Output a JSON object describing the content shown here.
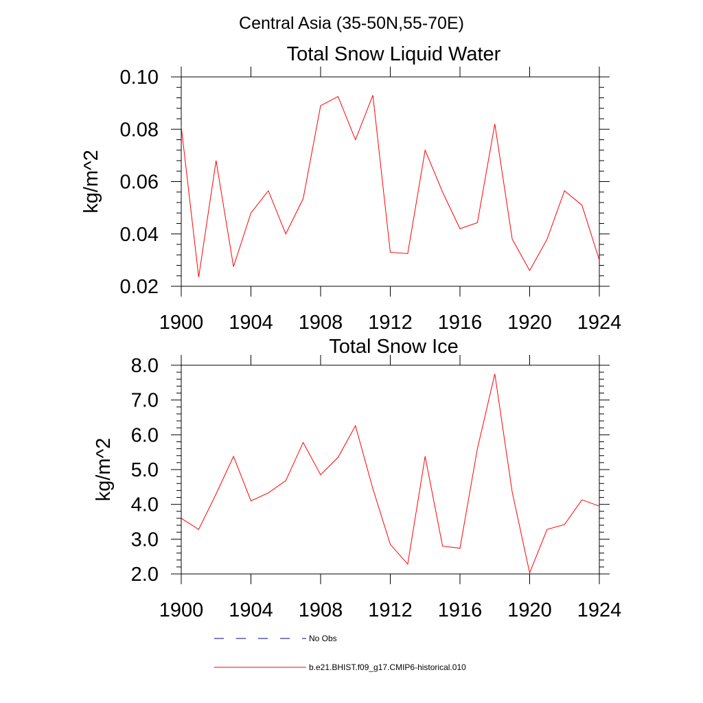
{
  "figure": {
    "suptitle": "Central Asia (35-50N,55-70E)"
  },
  "legend": {
    "entries": [
      {
        "label": "No Obs",
        "style": "dashed",
        "color": "#000080"
      },
      {
        "label": "b.e21.BHIST.f09_g17.CMIP6-historical.010",
        "style": "solid",
        "color": "#ff0000"
      }
    ]
  },
  "chart_data": [
    {
      "type": "line",
      "title": "Total Snow Liquid Water",
      "xlabel": "",
      "ylabel": "kg/m^2",
      "xlim": [
        1900,
        1924
      ],
      "ylim": [
        0.02,
        0.1
      ],
      "xticks": [
        1900,
        1904,
        1908,
        1912,
        1916,
        1920,
        1924
      ],
      "xtick_labels": [
        "1900",
        "1904",
        "1908",
        "1912",
        "1916",
        "1920",
        "1924"
      ],
      "yticks": [
        0.02,
        0.04,
        0.06,
        0.08,
        0.1
      ],
      "ytick_labels": [
        "0.02",
        "0.04",
        "0.06",
        "0.08",
        "0.10"
      ],
      "grid": false,
      "series": [
        {
          "color": "#ff0000",
          "x": [
            1900,
            1901,
            1902,
            1903,
            1904,
            1905,
            1906,
            1907,
            1908,
            1909,
            1910,
            1911,
            1912,
            1913,
            1914,
            1915,
            1916,
            1917,
            1918,
            1919,
            1920,
            1921,
            1922,
            1923,
            1924
          ],
          "y": [
            0.081,
            0.0235,
            0.068,
            0.0275,
            0.048,
            0.0565,
            0.04,
            0.0535,
            0.089,
            0.0925,
            0.076,
            0.093,
            0.033,
            0.0325,
            0.072,
            0.056,
            0.042,
            0.0443,
            0.082,
            0.038,
            0.026,
            0.038,
            0.0565,
            0.051,
            0.03
          ]
        }
      ]
    },
    {
      "type": "line",
      "title": "Total Snow Ice",
      "xlabel": "",
      "ylabel": "kg/m^2",
      "xlim": [
        1900,
        1924
      ],
      "ylim": [
        2.0,
        8.0
      ],
      "xticks": [
        1900,
        1904,
        1908,
        1912,
        1916,
        1920,
        1924
      ],
      "xtick_labels": [
        "1900",
        "1904",
        "1908",
        "1912",
        "1916",
        "1920",
        "1924"
      ],
      "yticks": [
        2.0,
        3.0,
        4.0,
        5.0,
        6.0,
        7.0,
        8.0
      ],
      "ytick_labels": [
        "2.0",
        "3.0",
        "4.0",
        "5.0",
        "6.0",
        "7.0",
        "8.0"
      ],
      "grid": false,
      "series": [
        {
          "color": "#ff0000",
          "x": [
            1900,
            1901,
            1902,
            1903,
            1904,
            1905,
            1906,
            1907,
            1908,
            1909,
            1910,
            1911,
            1912,
            1913,
            1914,
            1915,
            1916,
            1917,
            1918,
            1919,
            1920,
            1921,
            1922,
            1923,
            1924
          ],
          "y": [
            3.6,
            3.28,
            4.3,
            5.38,
            4.1,
            4.33,
            4.68,
            5.78,
            4.85,
            5.35,
            6.26,
            4.45,
            2.85,
            2.28,
            5.38,
            2.8,
            2.74,
            5.6,
            7.75,
            4.35,
            2.03,
            3.28,
            3.42,
            4.13,
            3.95
          ]
        }
      ]
    }
  ]
}
